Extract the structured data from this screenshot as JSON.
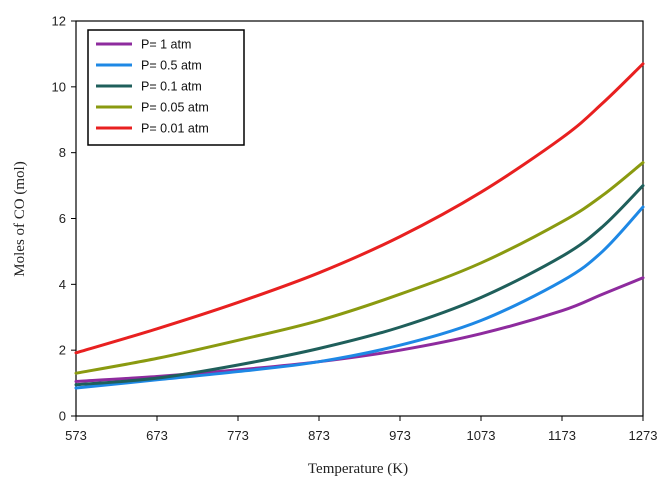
{
  "chart_data": {
    "type": "line",
    "xlabel": "Temperature (K)",
    "ylabel": "Moles of CO (mol)",
    "xlim": [
      573,
      1273
    ],
    "ylim": [
      0,
      12
    ],
    "x_ticks": [
      573,
      673,
      773,
      873,
      973,
      1073,
      1173,
      1273
    ],
    "y_ticks": [
      0,
      2,
      4,
      6,
      8,
      10,
      12
    ],
    "grid": false,
    "legend_position": "top-left",
    "x": [
      573,
      673,
      773,
      873,
      973,
      1073,
      1173,
      1223,
      1273
    ],
    "series": [
      {
        "name": "P= 1 atm",
        "color": "#8e2b9e",
        "values": [
          1.05,
          1.2,
          1.4,
          1.65,
          2.0,
          2.5,
          3.2,
          3.7,
          4.2
        ]
      },
      {
        "name": "P= 0.5 atm",
        "color": "#1e88e5",
        "values": [
          0.85,
          1.1,
          1.35,
          1.65,
          2.15,
          2.9,
          4.1,
          5.0,
          6.35
        ]
      },
      {
        "name": "P= 0.1 atm",
        "color": "#1f5f5b",
        "values": [
          0.95,
          1.15,
          1.55,
          2.05,
          2.7,
          3.6,
          4.85,
          5.75,
          7.0
        ]
      },
      {
        "name": "P= 0.05 atm",
        "color": "#8a9a10",
        "values": [
          1.3,
          1.75,
          2.3,
          2.9,
          3.7,
          4.65,
          5.9,
          6.7,
          7.7
        ]
      },
      {
        "name": "P= 0.01 atm",
        "color": "#e82020",
        "values": [
          1.92,
          2.65,
          3.45,
          4.35,
          5.45,
          6.8,
          8.45,
          9.5,
          10.7
        ]
      }
    ]
  }
}
